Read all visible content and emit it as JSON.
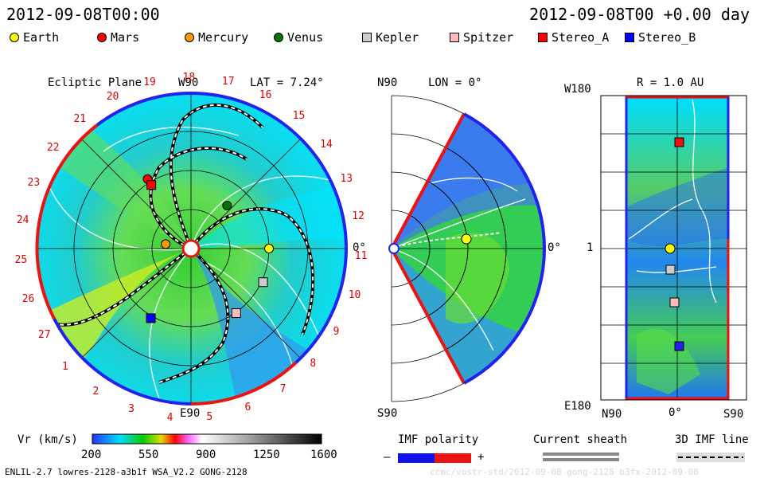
{
  "header": {
    "left_timestamp": "2012-09-08T00:00",
    "right_timestamp": "2012-09-08T00 +0.00 day"
  },
  "legend": [
    {
      "label": "Earth",
      "color": "#ffff00",
      "shape": "circle"
    },
    {
      "label": "Mars",
      "color": "#ff0000",
      "shape": "circle"
    },
    {
      "label": "Mercury",
      "color": "#ff9900",
      "shape": "circle"
    },
    {
      "label": "Venus",
      "color": "#007700",
      "shape": "circle"
    },
    {
      "label": "Kepler",
      "color": "#cccccc",
      "shape": "square"
    },
    {
      "label": "Spitzer",
      "color": "#ffbbbb",
      "shape": "square"
    },
    {
      "label": "Stereo_A",
      "color": "#ff0000",
      "shape": "square"
    },
    {
      "label": "Stereo_B",
      "color": "#0000ff",
      "shape": "square"
    }
  ],
  "panel_ecliptic": {
    "title": "Ecliptic Plane",
    "top_label": "W90",
    "bottom_label": "E90",
    "lat_label": "LAT = 7.24°",
    "right_label": "0°",
    "carrington_numbers": [
      "19",
      "20",
      "21",
      "22",
      "23",
      "24",
      "25",
      "26",
      "27",
      "1",
      "2",
      "3",
      "4",
      "5",
      "6",
      "7",
      "8",
      "9",
      "10",
      "11",
      "12",
      "13",
      "14",
      "15",
      "16",
      "17",
      "18"
    ]
  },
  "panel_meridional": {
    "top_label": "N90",
    "bottom_label": "S90",
    "lon_label": "LON = 0°",
    "right_label": "0°"
  },
  "panel_shell": {
    "title": "R = 1.0 AU",
    "top_left": "W180",
    "bottom_left": "E180",
    "mid_left": "1",
    "x_left": "N90",
    "x_mid": "0°",
    "x_right": "S90"
  },
  "colorbar": {
    "label": "Vr (km/s)",
    "ticks": [
      "200",
      "550",
      "900",
      "1250",
      "1600"
    ]
  },
  "imf_polarity": {
    "title": "IMF polarity",
    "minus": "–",
    "plus": "+"
  },
  "current_sheath": {
    "title": "Current sheath"
  },
  "imf_line": {
    "title": "3D IMF line"
  },
  "footer": {
    "model_info": "ENLIL-2.7 lowres-2128-a3b1f WSA_V2.2 GONG-2128",
    "run_info": "ccmc/vostr-std/2012-09-08 gong-2128 b3fx-2012-09-08"
  },
  "chart_data": {
    "type": "heatmap",
    "quantity": "Vr (km/s)",
    "color_range": [
      200,
      1600
    ],
    "colorbar_ticks": [
      200,
      550,
      900,
      1250,
      1600
    ],
    "timestamp": "2012-09-08T00:00",
    "ecliptic_latitude_deg": 7.24,
    "meridional_longitude_deg": 0,
    "shell_radius_au": 1.0,
    "bodies_ecliptic": [
      {
        "name": "Earth",
        "r_au": 1.0,
        "lon_deg": 0
      },
      {
        "name": "Mercury",
        "r_au": 0.33,
        "lon_deg": 170
      },
      {
        "name": "Venus",
        "r_au": 0.72,
        "lon_deg": 50
      },
      {
        "name": "Mars",
        "r_au": 1.05,
        "lon_deg": 122
      },
      {
        "name": "Kepler",
        "r_au": 1.02,
        "lon_deg": -25
      },
      {
        "name": "Spitzer",
        "r_au": 1.01,
        "lon_deg": -55
      },
      {
        "name": "Stereo_A",
        "r_au": 0.96,
        "lon_deg": 122
      },
      {
        "name": "Stereo_B",
        "r_au": 1.03,
        "lon_deg": -120
      }
    ]
  }
}
